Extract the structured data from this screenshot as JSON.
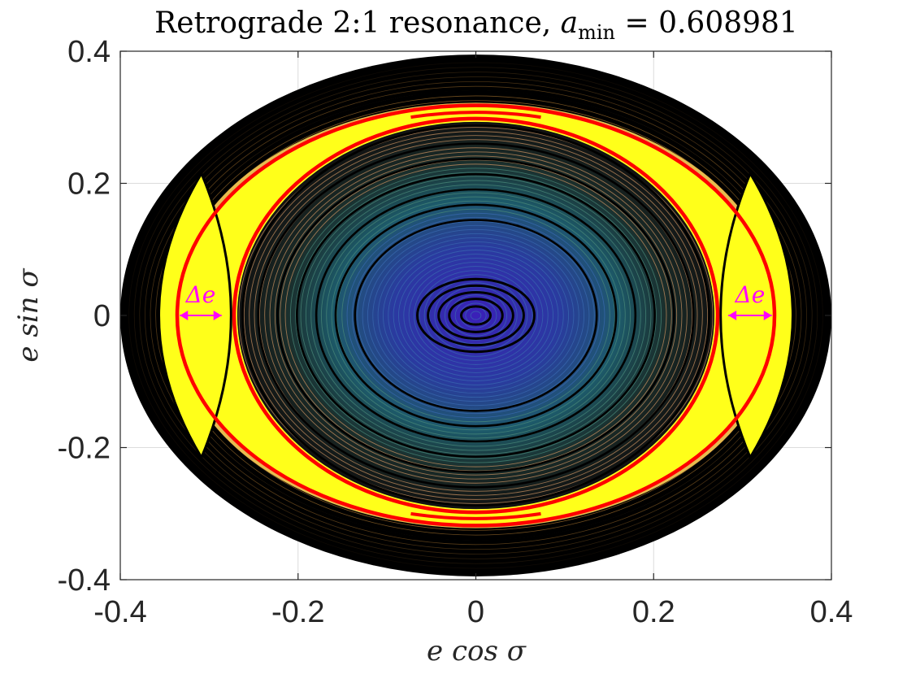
{
  "chart_data": {
    "type": "contour",
    "title": "Retrograde 2:1 resonance, a_min = 0.608981",
    "title_parts": {
      "main": "Retrograde 2:1 resonance, ",
      "var": "a",
      "sub": "min",
      "rest": " = 0.608981"
    },
    "xlabel": "e cos σ",
    "ylabel": "e sin σ",
    "xlim": [
      -0.4,
      0.4
    ],
    "ylim": [
      -0.4,
      0.4
    ],
    "xticks": [
      -0.4,
      -0.2,
      0,
      0.2,
      0.4
    ],
    "yticks": [
      0.4,
      0.2,
      0,
      -0.2,
      -0.4
    ],
    "xtick_labels": [
      "-0.4",
      "-0.2",
      "0",
      "0.2",
      "0.4"
    ],
    "ytick_labels": [
      "0.4",
      "0.2",
      "0",
      "-0.2",
      "-0.4"
    ],
    "grid": true,
    "domain_boundary": {
      "rx": 0.4,
      "ry": 0.395
    },
    "separatrix_color": "#ff0000",
    "contour_line_color": "#000000",
    "resonance_fill_color": "#ffff1a",
    "center_color": "#3a20b8",
    "outer_fill_color": "#000000",
    "resonance_band": {
      "inner_x": 0.272,
      "outer_x": 0.336,
      "y_extent": 0.31
    },
    "islands": [
      {
        "center_x": -0.3,
        "center_y": 0,
        "half_width": 0.058,
        "half_height": 0.215
      },
      {
        "center_x": 0.3,
        "center_y": 0,
        "half_width": 0.058,
        "half_height": 0.215
      }
    ],
    "annotations": [
      {
        "text": "Δe",
        "x_from": -0.333,
        "x_to": -0.286,
        "y": 0,
        "color": "#ff00ff"
      },
      {
        "text": "Δe",
        "x_from": 0.284,
        "x_to": 0.333,
        "y": 0,
        "color": "#ff00ff"
      }
    ]
  }
}
